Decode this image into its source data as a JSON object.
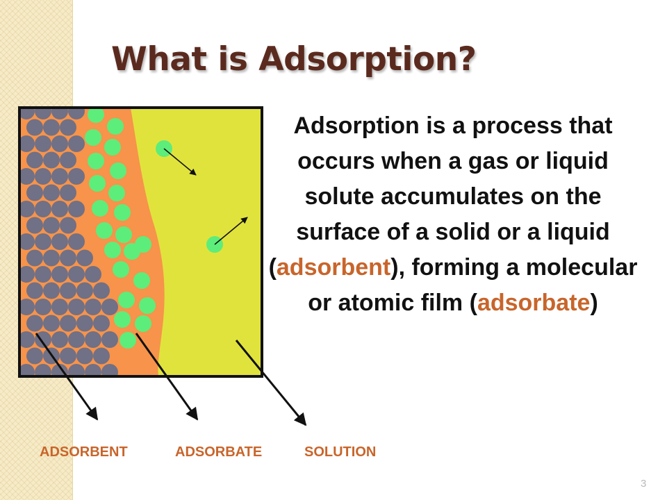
{
  "slide": {
    "title": "What is Adsorption?",
    "description": {
      "part1": "Adsorption is a process that occurs when a gas or liquid solute accumulates on the surface of a solid or a liquid (",
      "highlight1": "adsorbent",
      "part2": "), forming a molecular or atomic film (",
      "highlight2": "adsorbate",
      "part3": ")"
    },
    "labels": {
      "adsorbent": "ADSORBENT",
      "adsorbate": "ADSORBATE",
      "solution": "SOLUTION"
    },
    "page_number": "3"
  },
  "colors": {
    "title": "#5b2a1e",
    "highlight": "#c8652b",
    "adsorbent_molecule": "#707086",
    "adsorbate_molecule": "#5ded7a",
    "film": "#f7934a",
    "solution": "#e1e33d",
    "panel_background": "#f6ebc6"
  }
}
